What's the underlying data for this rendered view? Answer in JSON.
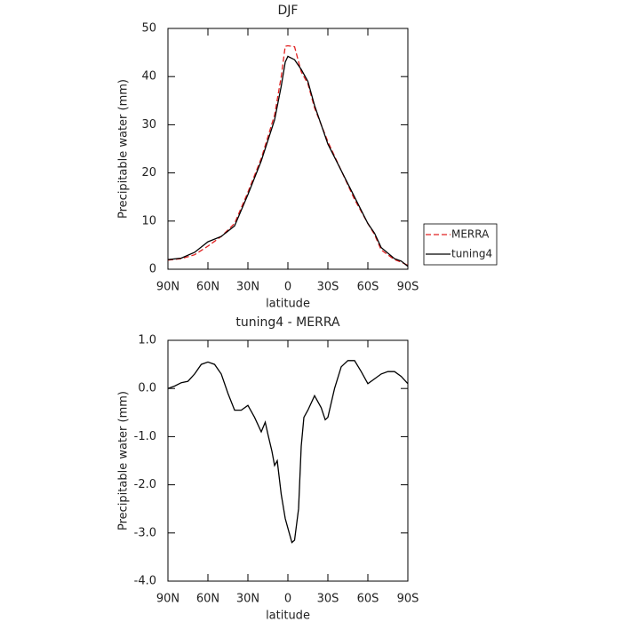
{
  "chart_data": [
    {
      "type": "line",
      "title": "DJF",
      "xlabel": "latitude",
      "ylabel": "Precipitable water (mm)",
      "x": [
        90,
        80,
        70,
        60,
        50,
        40,
        30,
        20,
        10,
        5,
        2,
        0,
        -5,
        -10,
        -15,
        -20,
        -30,
        -40,
        -50,
        -60,
        -65,
        -70,
        -80,
        -85,
        -90
      ],
      "series": [
        {
          "name": "MERRA",
          "color": "#e02020",
          "dash": "dashed",
          "values": [
            1.9,
            2.2,
            3.0,
            4.8,
            6.8,
            9.5,
            16,
            23,
            32,
            40,
            46.3,
            46.4,
            46.2,
            41,
            38.5,
            33.5,
            26.5,
            20.5,
            14.5,
            9.5,
            7.2,
            4.0,
            2.0,
            1.5,
            0.8
          ]
        },
        {
          "name": "tuning4",
          "color": "#000000",
          "dash": "solid",
          "values": [
            2.0,
            2.3,
            3.5,
            5.7,
            6.8,
            9.0,
            15.5,
            22.5,
            31,
            38,
            43,
            44.2,
            43.5,
            41.5,
            39,
            34,
            26,
            20.5,
            15,
            9.5,
            7.5,
            4.5,
            2.2,
            1.7,
            0.6
          ]
        }
      ],
      "xlim": [
        90,
        -90
      ],
      "xticks": [
        {
          "value": 90,
          "label": "90N"
        },
        {
          "value": 60,
          "label": "60N"
        },
        {
          "value": 30,
          "label": "30N"
        },
        0,
        {
          "value": -30,
          "label": "30S"
        },
        {
          "value": -60,
          "label": "60S"
        },
        {
          "value": -90,
          "label": "90S"
        }
      ],
      "ylim": [
        0,
        50
      ],
      "yticks": [
        0,
        10,
        20,
        30,
        40,
        50
      ],
      "legend": "right"
    },
    {
      "type": "line",
      "title": "tuning4 - MERRA",
      "xlabel": "latitude",
      "ylabel": "Precipitable water (mm)",
      "x": [
        90,
        85,
        80,
        75,
        70,
        65,
        60,
        55,
        50,
        45,
        40,
        35,
        30,
        25,
        20,
        17,
        15,
        12,
        10,
        8,
        5,
        2,
        0,
        -3,
        -5,
        -8,
        -10,
        -12,
        -15,
        -20,
        -25,
        -28,
        -30,
        -35,
        -40,
        -45,
        -50,
        -55,
        -60,
        -65,
        -70,
        -75,
        -80,
        -85,
        -90
      ],
      "values": [
        0,
        0.05,
        0.12,
        0.15,
        0.3,
        0.5,
        0.55,
        0.5,
        0.3,
        -0.1,
        -0.45,
        -0.45,
        -0.35,
        -0.6,
        -0.9,
        -0.7,
        -0.95,
        -1.3,
        -1.6,
        -1.5,
        -2.2,
        -2.7,
        -2.9,
        -3.2,
        -3.15,
        -2.5,
        -1.2,
        -0.6,
        -0.45,
        -0.15,
        -0.4,
        -0.65,
        -0.6,
        0.0,
        0.45,
        0.58,
        0.58,
        0.35,
        0.1,
        0.2,
        0.3,
        0.35,
        0.35,
        0.25,
        0.1
      ],
      "color": "#000000",
      "xlim": [
        90,
        -90
      ],
      "xticks": [
        {
          "value": 90,
          "label": "90N"
        },
        {
          "value": 60,
          "label": "60N"
        },
        {
          "value": 30,
          "label": "30N"
        },
        0,
        {
          "value": -30,
          "label": "30S"
        },
        {
          "value": -60,
          "label": "60S"
        },
        {
          "value": -90,
          "label": "90S"
        }
      ],
      "ylim": [
        -4,
        1
      ],
      "yticks": [
        {
          "value": 1,
          "label": "1.0"
        },
        {
          "value": 0,
          "label": "0.0"
        },
        {
          "value": -1,
          "label": "-1.0"
        },
        {
          "value": -2,
          "label": "-2.0"
        },
        {
          "value": -3,
          "label": "-3.0"
        },
        {
          "value": -4,
          "label": "-4.0"
        }
      ]
    }
  ]
}
